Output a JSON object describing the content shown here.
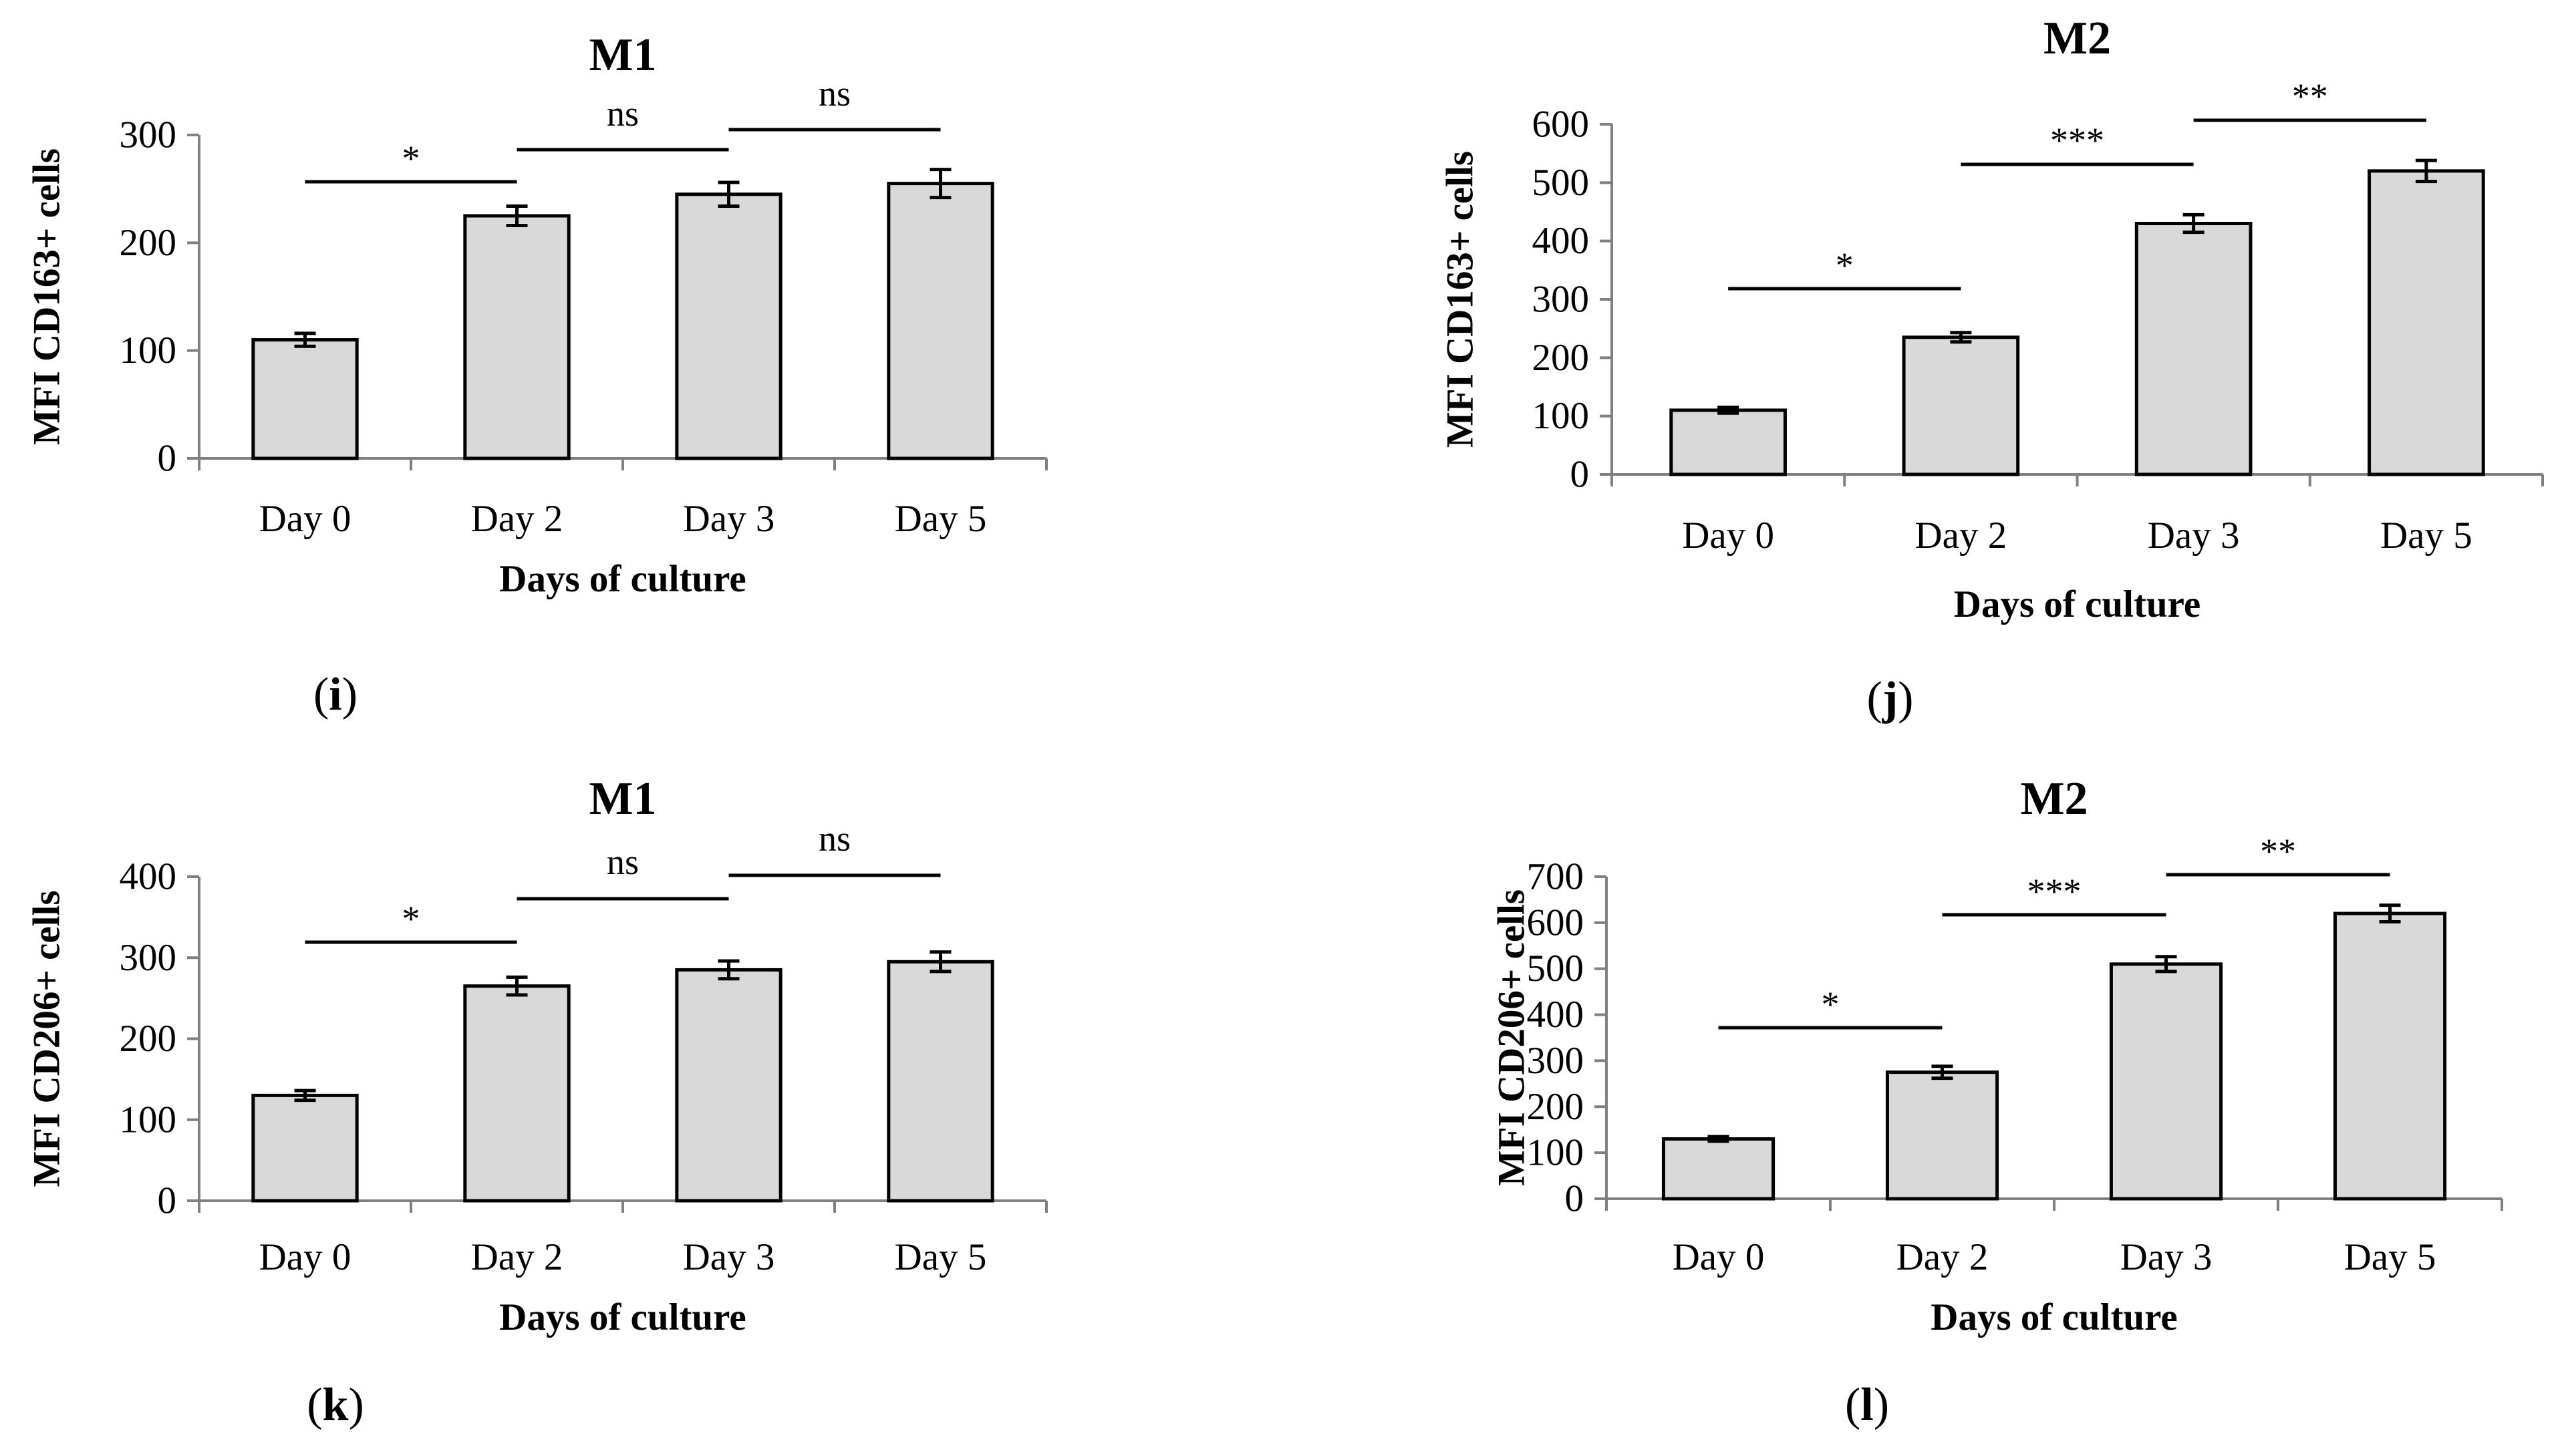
{
  "chart_data": [
    {
      "type": "bar",
      "panel_label": "i",
      "title": "M1",
      "xlabel": "Days of culture",
      "ylabel": "MFI CD163+ cells",
      "categories": [
        "Day 0",
        "Day 2",
        "Day 3",
        "Day 5"
      ],
      "values": [
        110,
        225,
        245,
        255
      ],
      "errors": [
        6,
        9,
        11,
        13
      ],
      "ylim": [
        0,
        300
      ],
      "yticks": [
        0,
        100,
        200,
        300
      ],
      "bar_color": "#d9d9d9",
      "significance": [
        {
          "from": 0,
          "to": 1,
          "label": "*"
        },
        {
          "from": 1,
          "to": 2,
          "label": "ns"
        },
        {
          "from": 2,
          "to": 3,
          "label": "ns"
        }
      ]
    },
    {
      "type": "bar",
      "panel_label": "j",
      "title": "M2",
      "xlabel": "Days of culture",
      "ylabel": "MFI CD163+ cells",
      "categories": [
        "Day 0",
        "Day 2",
        "Day 3",
        "Day 5"
      ],
      "values": [
        110,
        235,
        430,
        520
      ],
      "errors": [
        5,
        8,
        15,
        18
      ],
      "ylim": [
        0,
        600
      ],
      "yticks": [
        0,
        100,
        200,
        300,
        400,
        500,
        600
      ],
      "bar_color": "#d9d9d9",
      "significance": [
        {
          "from": 0,
          "to": 1,
          "label": "*"
        },
        {
          "from": 1,
          "to": 2,
          "label": "***"
        },
        {
          "from": 2,
          "to": 3,
          "label": "**"
        }
      ]
    },
    {
      "type": "bar",
      "panel_label": "k",
      "title": "M1",
      "xlabel": "Days of culture",
      "ylabel": "MFI CD206+ cells",
      "categories": [
        "Day 0",
        "Day 2",
        "Day 3",
        "Day 5"
      ],
      "values": [
        130,
        265,
        285,
        295
      ],
      "errors": [
        6,
        11,
        11,
        12
      ],
      "ylim": [
        0,
        400
      ],
      "yticks": [
        0,
        100,
        200,
        300,
        400
      ],
      "bar_color": "#d9d9d9",
      "significance": [
        {
          "from": 0,
          "to": 1,
          "label": "*"
        },
        {
          "from": 1,
          "to": 2,
          "label": "ns"
        },
        {
          "from": 2,
          "to": 3,
          "label": "ns"
        }
      ]
    },
    {
      "type": "bar",
      "panel_label": "l",
      "title": "M2",
      "xlabel": "Days of culture",
      "ylabel": "MFI CD206+ cells",
      "categories": [
        "Day 0",
        "Day 2",
        "Day 3",
        "Day 5"
      ],
      "values": [
        130,
        275,
        510,
        620
      ],
      "errors": [
        5,
        13,
        16,
        18
      ],
      "ylim": [
        0,
        700
      ],
      "yticks": [
        0,
        100,
        200,
        300,
        400,
        500,
        600,
        700
      ],
      "bar_color": "#d9d9d9",
      "significance": [
        {
          "from": 0,
          "to": 1,
          "label": "*"
        },
        {
          "from": 1,
          "to": 2,
          "label": "***"
        },
        {
          "from": 2,
          "to": 3,
          "label": "**"
        }
      ]
    }
  ]
}
